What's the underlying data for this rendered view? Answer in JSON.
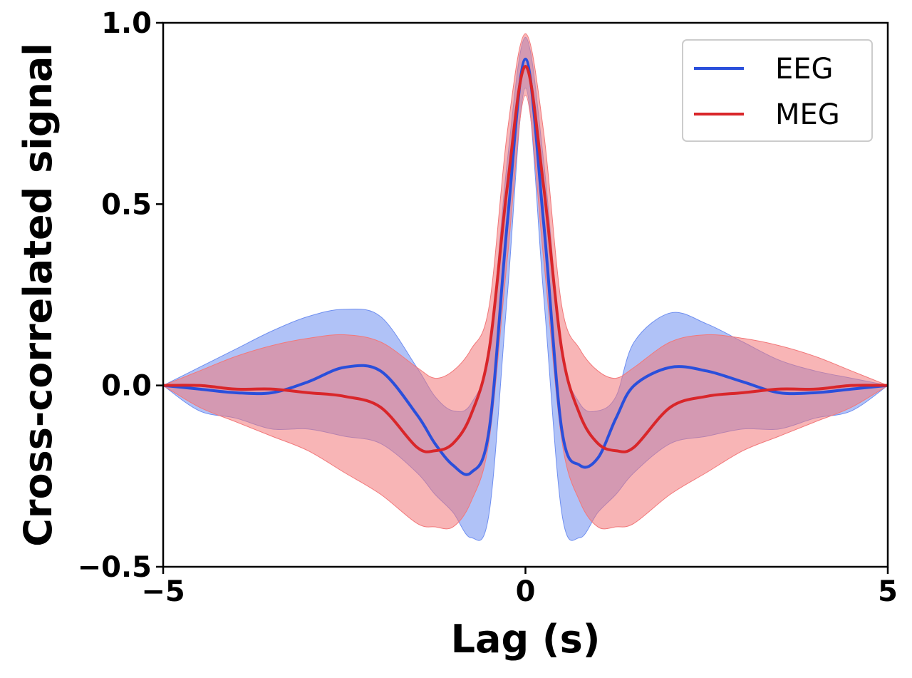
{
  "chart_data": {
    "type": "line",
    "xlabel": "Lag (s)",
    "ylabel": "Cross-correlated signal",
    "xlim": [
      -5,
      5
    ],
    "ylim": [
      -0.5,
      1.0
    ],
    "xticks": [
      -5,
      0,
      5
    ],
    "xtick_labels": [
      "−5",
      "0",
      "5"
    ],
    "yticks": [
      -0.5,
      0.0,
      0.5,
      1.0
    ],
    "ytick_labels": [
      "−0.5",
      "0.0",
      "0.5",
      "1.0"
    ],
    "grid": false,
    "legend_position": "top-right",
    "x": [
      -5,
      -4.5,
      -4,
      -3.5,
      -3,
      -2.5,
      -2,
      -1.5,
      -1.25,
      -1,
      -0.75,
      -0.5,
      -0.25,
      0,
      0.25,
      0.5,
      0.75,
      1,
      1.25,
      1.5,
      2,
      2.5,
      3,
      3.5,
      4,
      4.5,
      5
    ],
    "series": [
      {
        "name": "EEG",
        "color": "#2a4fdb",
        "band_color": "#6f8ff0",
        "values": [
          0.0,
          -0.01,
          -0.02,
          -0.02,
          0.01,
          0.05,
          0.04,
          -0.08,
          -0.16,
          -0.22,
          -0.24,
          -0.12,
          0.45,
          0.9,
          0.45,
          -0.12,
          -0.22,
          -0.2,
          -0.09,
          0.0,
          0.05,
          0.04,
          0.01,
          -0.02,
          -0.02,
          -0.01,
          0.0
        ],
        "upper": [
          0.0,
          0.05,
          0.1,
          0.15,
          0.19,
          0.21,
          0.19,
          0.05,
          -0.03,
          -0.07,
          -0.05,
          0.1,
          0.62,
          0.96,
          0.62,
          0.1,
          -0.05,
          -0.07,
          -0.03,
          0.12,
          0.2,
          0.17,
          0.12,
          0.07,
          0.04,
          0.02,
          0.0
        ],
        "lower": [
          0.0,
          -0.07,
          -0.09,
          -0.12,
          -0.12,
          -0.14,
          -0.16,
          -0.24,
          -0.3,
          -0.35,
          -0.42,
          -0.35,
          0.25,
          0.82,
          0.25,
          -0.35,
          -0.42,
          -0.35,
          -0.3,
          -0.24,
          -0.16,
          -0.14,
          -0.12,
          -0.12,
          -0.09,
          -0.07,
          0.0
        ]
      },
      {
        "name": "MEG",
        "color": "#d9262a",
        "band_color": "#f2787a",
        "values": [
          0.0,
          0.0,
          -0.01,
          -0.01,
          -0.02,
          -0.03,
          -0.06,
          -0.17,
          -0.18,
          -0.16,
          -0.08,
          0.1,
          0.55,
          0.88,
          0.55,
          0.1,
          -0.08,
          -0.16,
          -0.18,
          -0.17,
          -0.06,
          -0.03,
          -0.02,
          -0.01,
          -0.01,
          0.0,
          0.0
        ],
        "upper": [
          0.0,
          0.04,
          0.08,
          0.11,
          0.13,
          0.14,
          0.12,
          0.05,
          0.02,
          0.04,
          0.1,
          0.22,
          0.7,
          0.97,
          0.7,
          0.22,
          0.1,
          0.04,
          0.02,
          0.05,
          0.12,
          0.14,
          0.13,
          0.11,
          0.08,
          0.04,
          0.0
        ],
        "lower": [
          0.0,
          -0.06,
          -0.1,
          -0.14,
          -0.18,
          -0.24,
          -0.3,
          -0.38,
          -0.39,
          -0.39,
          -0.32,
          -0.15,
          0.35,
          0.8,
          0.35,
          -0.15,
          -0.32,
          -0.39,
          -0.39,
          -0.38,
          -0.3,
          -0.24,
          -0.18,
          -0.14,
          -0.1,
          -0.06,
          0.0
        ]
      }
    ]
  }
}
